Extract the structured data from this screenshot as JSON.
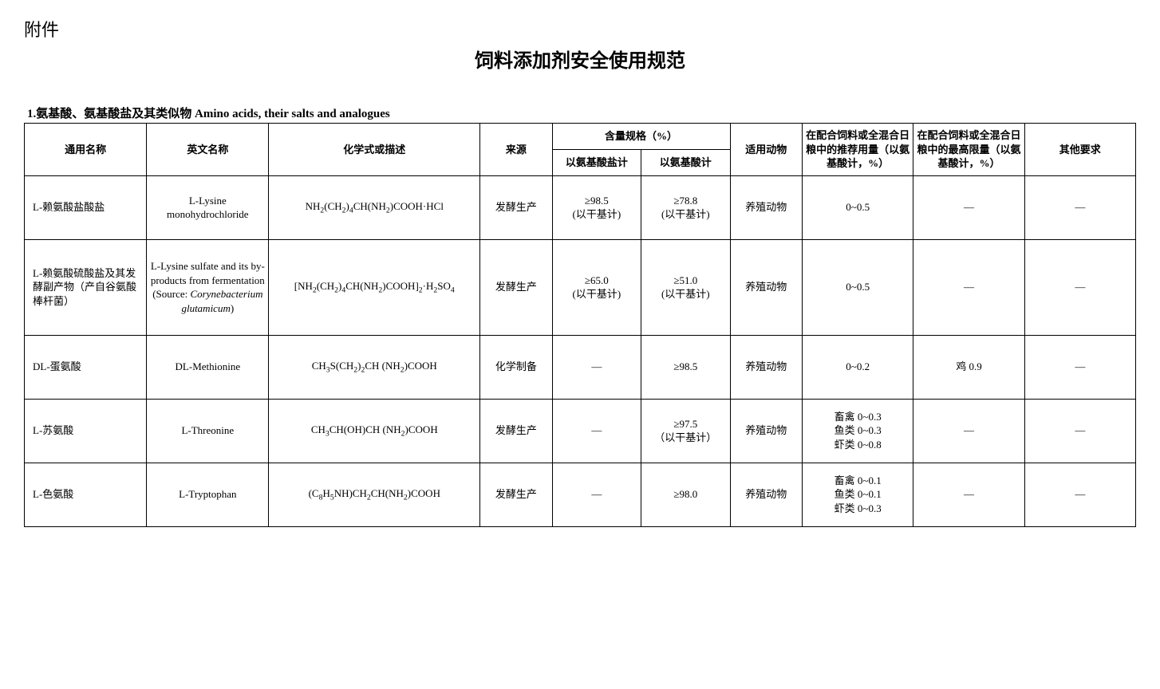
{
  "attachment_label": "附件",
  "page_title": "饲料添加剂安全使用规范",
  "section_heading": "1.氨基酸、氨基酸盐及其类似物  Amino acids, their salts and analogues",
  "headers": {
    "cn_name": "通用名称",
    "en_name": "英文名称",
    "chem": "化学式或描述",
    "source": "来源",
    "content_group": "含量规格（%）",
    "content_salt": "以氨基酸盐计",
    "content_acid": "以氨基酸计",
    "animal": "适用动物",
    "recommended": "在配合饲料或全混合日粮中的推荐用量（以氨基酸计，%）",
    "max_limit": "在配合饲料或全混合日粮中的最高限量（以氨基酸计，%）",
    "other": "其他要求"
  },
  "rows": [
    {
      "cn": "L-赖氨酸盐酸盐",
      "en": "L-Lysine monohydrochloride",
      "chem_html": "NH<sub>2</sub>(CH<sub>2</sub>)<sub>4</sub>CH(NH<sub>2</sub>)COOH·HCl",
      "source": "发酵生产",
      "salt": "≥98.5\n(以干基计)",
      "acid": "≥78.8\n(以干基计)",
      "animal": "养殖动物",
      "rec": "0~0.5",
      "max": "—",
      "other": "—"
    },
    {
      "cn": "L-赖氨酸硫酸盐及其发酵副产物（产自谷氨酸棒杆菌）",
      "en_html": "L-Lysine sulfate and its by-products from fermentation (Source: <span class=\"italic\">Corynebacterium glutamicum</span>)",
      "chem_html": "[NH<sub>2</sub>(CH<sub>2</sub>)<sub>4</sub>CH(NH<sub>2</sub>)COOH]<sub>2</sub>·H<sub>2</sub>SO<sub>4</sub>",
      "source": "发酵生产",
      "salt": "≥65.0\n(以干基计)",
      "acid": "≥51.0\n(以干基计)",
      "animal": "养殖动物",
      "rec": "0~0.5",
      "max": "—",
      "other": "—"
    },
    {
      "cn": "DL-蛋氨酸",
      "en": "DL-Methionine",
      "chem_html": "CH<sub>3</sub>S(CH<sub>2</sub>)<sub>2</sub>CH (NH<sub>2</sub>)COOH",
      "source": "化学制备",
      "salt": "—",
      "acid": "≥98.5",
      "animal": "养殖动物",
      "rec": "0~0.2",
      "max": "鸡  0.9",
      "other": "—"
    },
    {
      "cn": "L-苏氨酸",
      "en": "L-Threonine",
      "chem_html": "CH<sub>3</sub>CH(OH)CH (NH<sub>2</sub>)COOH",
      "source": "发酵生产",
      "salt": "—",
      "acid": "≥97.5\n（以干基计）",
      "animal": "养殖动物",
      "rec": "畜禽  0~0.3\n鱼类  0~0.3\n虾类  0~0.8",
      "max": "—",
      "other": "—"
    },
    {
      "cn": "L-色氨酸",
      "en": "L-Tryptophan",
      "chem_html": "(C<sub>8</sub>H<sub>5</sub>NH)CH<sub>2</sub>CH(NH<sub>2</sub>)COOH",
      "source": "发酵生产",
      "salt": "—",
      "acid": "≥98.0",
      "animal": "养殖动物",
      "rec": "畜禽  0~0.1\n鱼类  0~0.1\n虾类  0~0.3",
      "max": "—",
      "other": "—"
    }
  ]
}
